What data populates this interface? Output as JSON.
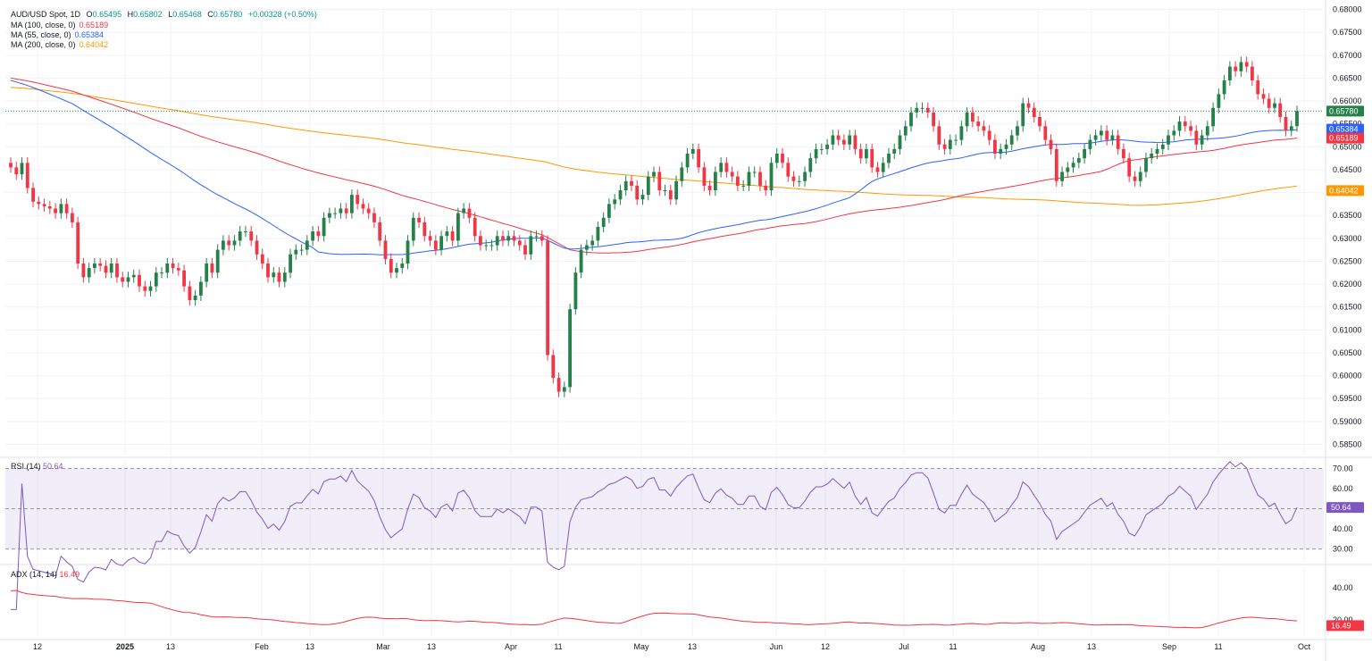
{
  "header": {
    "symbol": "AUD/USD Spot, 1D",
    "open_label": "O",
    "open": "0.65495",
    "high_label": "H",
    "high": "0.65802",
    "low_label": "L",
    "low": "0.65468",
    "close_label": "C",
    "close": "0.65780",
    "change": "+0.00328 (+0.50%)"
  },
  "ma_legend": [
    {
      "label": "MA (100, close, 0)",
      "value": "0.65189",
      "color": "#f23645"
    },
    {
      "label": "MA (55, close, 0)",
      "value": "0.65384",
      "color": "#2962ff"
    },
    {
      "label": "MA (200, close, 0)",
      "value": "0.64042",
      "color": "#ff9800"
    }
  ],
  "rsi_legend": {
    "label": "RSI (14)",
    "value": "50.64",
    "color": "#7e57c2"
  },
  "adx_legend": {
    "label": "ADX (14, 14)",
    "value": "16.49",
    "color": "#f23645"
  },
  "colors": {
    "up": "#22ab94",
    "up_body": "#26804a",
    "down": "#f23645",
    "grid": "#f0f3fa",
    "text": "#131722"
  },
  "chart_data": [
    {
      "type": "candlestick",
      "title": "AUD/USD Spot, 1D",
      "ylim": [
        0.5845,
        0.6805
      ],
      "y_ticks": [
        "0.68000",
        "0.67500",
        "0.67000",
        "0.66500",
        "0.66000",
        "0.65500",
        "0.65000",
        "0.64500",
        "0.64000",
        "0.63500",
        "0.63000",
        "0.62500",
        "0.62000",
        "0.61500",
        "0.61000",
        "0.60500",
        "0.60000",
        "0.59500",
        "0.59000",
        "0.58500"
      ],
      "x_ticks": [
        "12",
        "2025",
        "13",
        "Feb",
        "13",
        "Mar",
        "13",
        "Apr",
        "11",
        "May",
        "13",
        "Jun",
        "12",
        "Jul",
        "11",
        "Aug",
        "13",
        "Sep",
        "11",
        "Oct"
      ],
      "price_badges": [
        {
          "label": "0.65780",
          "value": 0.6578,
          "color": "#26804a"
        },
        {
          "label": "0.65384",
          "value": 0.65384,
          "color": "#2962ff"
        },
        {
          "label": "0.65189",
          "value": 0.65189,
          "color": "#f23645"
        },
        {
          "label": "0.64042",
          "value": 0.64042,
          "color": "#ff9800"
        }
      ],
      "closes": [
        0.6455,
        0.644,
        0.6465,
        0.641,
        0.638,
        0.6375,
        0.637,
        0.6365,
        0.6355,
        0.6375,
        0.6355,
        0.6335,
        0.6245,
        0.6215,
        0.6235,
        0.6245,
        0.624,
        0.6225,
        0.6245,
        0.6215,
        0.6205,
        0.6215,
        0.622,
        0.6195,
        0.6185,
        0.6195,
        0.6225,
        0.6225,
        0.6245,
        0.6235,
        0.623,
        0.6195,
        0.6165,
        0.6175,
        0.6205,
        0.6245,
        0.6225,
        0.6275,
        0.6295,
        0.6285,
        0.6295,
        0.6315,
        0.6315,
        0.6295,
        0.6265,
        0.6245,
        0.6215,
        0.6225,
        0.6205,
        0.6225,
        0.6265,
        0.6275,
        0.6275,
        0.6295,
        0.6315,
        0.6305,
        0.6345,
        0.6355,
        0.6355,
        0.6365,
        0.6355,
        0.6395,
        0.6375,
        0.6365,
        0.6355,
        0.6335,
        0.6295,
        0.6255,
        0.6225,
        0.6235,
        0.6245,
        0.6295,
        0.6345,
        0.6335,
        0.6305,
        0.6295,
        0.6275,
        0.6305,
        0.6315,
        0.6295,
        0.6355,
        0.6365,
        0.6345,
        0.6305,
        0.6285,
        0.6285,
        0.6285,
        0.6305,
        0.6295,
        0.6305,
        0.6295,
        0.6285,
        0.6265,
        0.6305,
        0.6305,
        0.6295,
        0.6045,
        0.5995,
        0.5965,
        0.5975,
        0.6145,
        0.6225,
        0.6275,
        0.6285,
        0.6295,
        0.6325,
        0.6345,
        0.6375,
        0.6385,
        0.6405,
        0.6425,
        0.6415,
        0.6385,
        0.6395,
        0.6435,
        0.6445,
        0.6405,
        0.6405,
        0.6385,
        0.6425,
        0.6455,
        0.6485,
        0.6495,
        0.6455,
        0.6415,
        0.6405,
        0.6445,
        0.6465,
        0.6445,
        0.6435,
        0.6415,
        0.6415,
        0.6445,
        0.6445,
        0.6415,
        0.6405,
        0.6465,
        0.6485,
        0.6465,
        0.6435,
        0.6425,
        0.6425,
        0.6445,
        0.6475,
        0.6495,
        0.6495,
        0.6505,
        0.6525,
        0.6515,
        0.6505,
        0.6525,
        0.6495,
        0.6475,
        0.6495,
        0.6455,
        0.6445,
        0.6465,
        0.6485,
        0.6495,
        0.6525,
        0.6545,
        0.6575,
        0.6585,
        0.6585,
        0.6575,
        0.6545,
        0.6505,
        0.6495,
        0.6515,
        0.6515,
        0.6545,
        0.6575,
        0.6555,
        0.6545,
        0.6535,
        0.6515,
        0.6485,
        0.6495,
        0.6505,
        0.6525,
        0.6545,
        0.6595,
        0.6585,
        0.6565,
        0.6545,
        0.6515,
        0.6495,
        0.6425,
        0.6445,
        0.6455,
        0.6465,
        0.6475,
        0.6495,
        0.6515,
        0.6525,
        0.6535,
        0.6515,
        0.6525,
        0.6495,
        0.6475,
        0.6435,
        0.6425,
        0.6445,
        0.6475,
        0.6485,
        0.6495,
        0.6505,
        0.6525,
        0.6535,
        0.6555,
        0.6545,
        0.6535,
        0.6505,
        0.6525,
        0.6545,
        0.6585,
        0.6615,
        0.6645,
        0.6675,
        0.6665,
        0.6685,
        0.6675,
        0.6645,
        0.6615,
        0.6605,
        0.6585,
        0.6595,
        0.6565,
        0.6535,
        0.6545,
        0.6578
      ]
    },
    {
      "type": "line",
      "title": "RSI (14)",
      "ylim": [
        25,
        72
      ],
      "y_ticks": [
        "70.00",
        "60.00",
        "40.00",
        "30.00"
      ],
      "levels": [
        70,
        50,
        30
      ],
      "series": [
        {
          "name": "RSI (14)",
          "value_label": "50.64"
        }
      ]
    },
    {
      "type": "line",
      "title": "ADX (14, 14)",
      "ylim": [
        10,
        50
      ],
      "y_ticks": [
        "40.00",
        "20.00"
      ],
      "series": [
        {
          "name": "ADX (14, 14)",
          "value_label": "16.49"
        }
      ]
    }
  ]
}
